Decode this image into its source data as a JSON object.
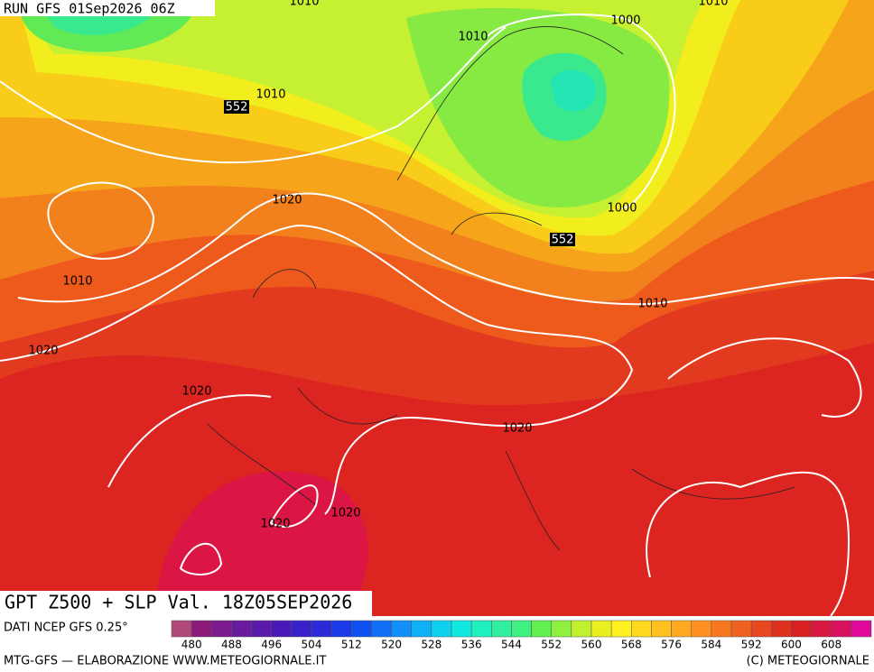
{
  "header": {
    "run": "RUN GFS 01Sep2026 06Z"
  },
  "map": {
    "title": "GPT Z500 + SLP Val. 18Z05SEP2026",
    "contour_labels": [
      "1010",
      "1010",
      "1010",
      "1000",
      "552",
      "1010",
      "1020",
      "1000",
      "552",
      "1010",
      "1010",
      "1020",
      "1020",
      "1020",
      "1020",
      "1020"
    ]
  },
  "legend": {
    "source": "DATI NCEP GFS 0.25°",
    "labels": [
      480,
      488,
      496,
      504,
      512,
      520,
      528,
      536,
      544,
      552,
      560,
      568,
      576,
      584,
      592,
      600,
      608
    ],
    "colors": [
      "#b04878",
      "#8c1a7a",
      "#7a1a8c",
      "#6a1a9c",
      "#5a1aaa",
      "#4a1ab8",
      "#3a20c8",
      "#2a2ad8",
      "#1a3ae8",
      "#1050f0",
      "#1070f5",
      "#1090f8",
      "#10b0f8",
      "#10d0f0",
      "#10e8e0",
      "#20f0c0",
      "#30f0a0",
      "#40f080",
      "#60f050",
      "#90f040",
      "#c0f030",
      "#e8f020",
      "#fff020",
      "#ffd820",
      "#ffc020",
      "#ffa820",
      "#ff9020",
      "#f87820",
      "#f06020",
      "#e84820",
      "#e03020",
      "#d82020",
      "#d81840",
      "#d81060",
      "#e0089a"
    ]
  },
  "footer": {
    "left": "MTG-GFS — ELABORAZIONE WWW.METEOGIORNALE.IT",
    "right": "(C) METEOGIORNALE"
  }
}
